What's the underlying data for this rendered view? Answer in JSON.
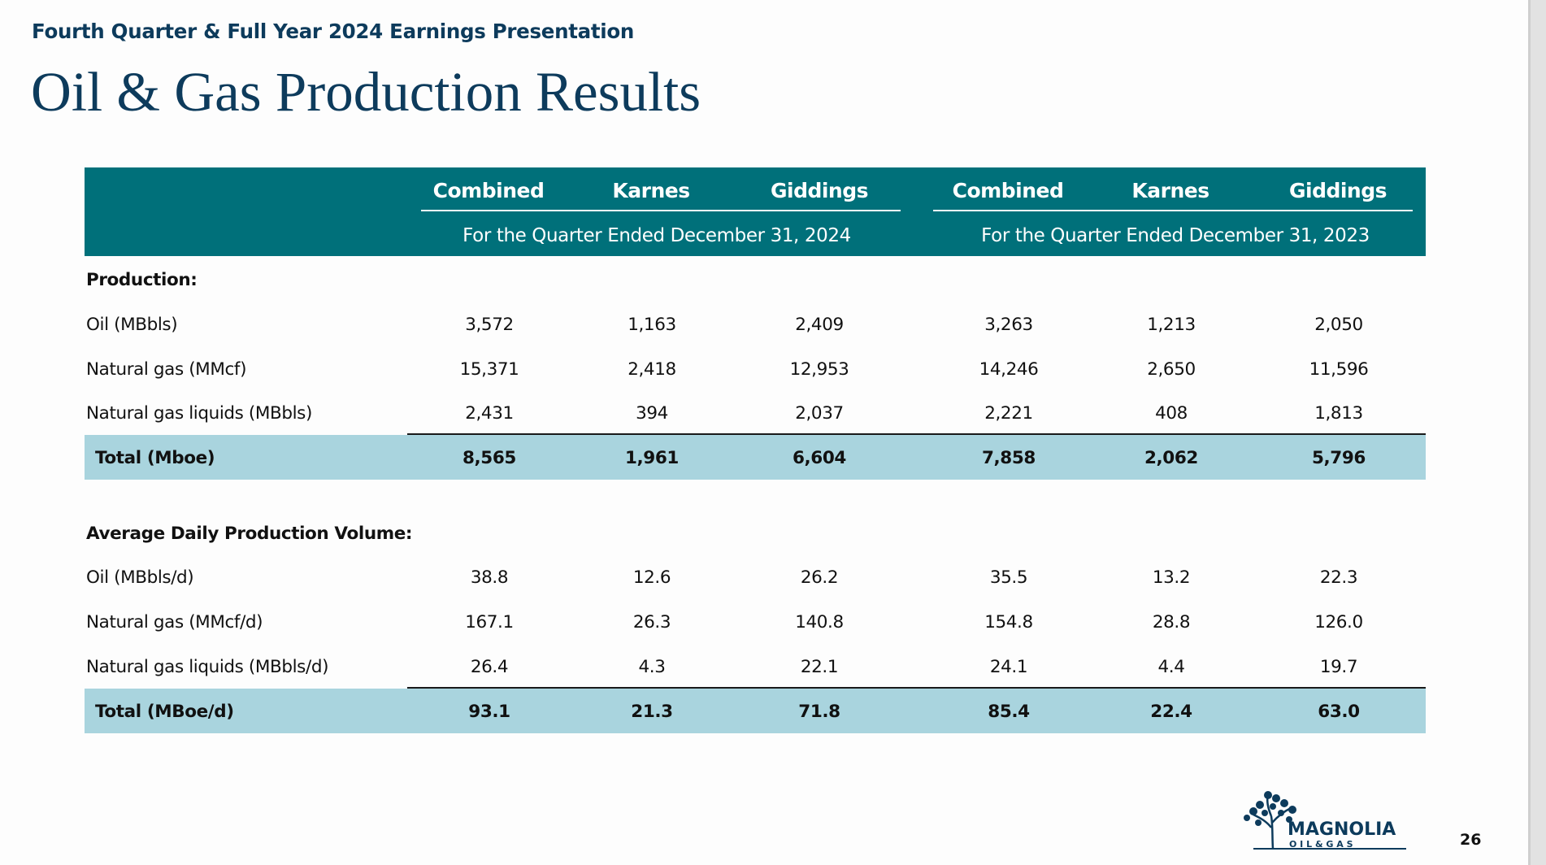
{
  "header": {
    "subtitle": "Fourth Quarter & Full Year 2024 Earnings Presentation",
    "title": "Oil & Gas Production Results"
  },
  "table": {
    "columns": [
      "Combined",
      "Karnes",
      "Giddings",
      "Combined",
      "Karnes",
      "Giddings"
    ],
    "periods": [
      "For the Quarter Ended December 31, 2024",
      "For the Quarter Ended December 31, 2023"
    ],
    "sections": [
      {
        "heading": "Production:",
        "rows": [
          {
            "label": "Oil (MBbls)",
            "values": [
              "3,572",
              "1,163",
              "2,409",
              "3,263",
              "1,213",
              "2,050"
            ]
          },
          {
            "label": "Natural gas (MMcf)",
            "values": [
              "15,371",
              "2,418",
              "12,953",
              "14,246",
              "2,650",
              "11,596"
            ]
          },
          {
            "label": "Natural gas liquids (MBbls)",
            "values": [
              "2,431",
              "394",
              "2,037",
              "2,221",
              "408",
              "1,813"
            ]
          }
        ],
        "total": {
          "label": "Total (Mboe)",
          "values": [
            "8,565",
            "1,961",
            "6,604",
            "7,858",
            "2,062",
            "5,796"
          ]
        }
      },
      {
        "heading": "Average Daily Production Volume:",
        "rows": [
          {
            "label": "Oil (MBbls/d)",
            "values": [
              "38.8",
              "12.6",
              "26.2",
              "35.5",
              "13.2",
              "22.3"
            ]
          },
          {
            "label": "Natural gas (MMcf/d)",
            "values": [
              "167.1",
              "26.3",
              "140.8",
              "154.8",
              "28.8",
              "126.0"
            ]
          },
          {
            "label": "Natural gas liquids (MBbls/d)",
            "values": [
              "26.4",
              "4.3",
              "22.1",
              "24.1",
              "4.4",
              "19.7"
            ]
          }
        ],
        "total": {
          "label": "Total (MBoe/d)",
          "values": [
            "93.1",
            "21.3",
            "71.8",
            "85.4",
            "22.4",
            "63.0"
          ]
        }
      }
    ]
  },
  "footer": {
    "logo_main": "MAGNOLIA",
    "logo_sub": "O I L  &  G A S",
    "page_number": "26"
  },
  "colors": {
    "header_bg": "#00707a",
    "total_row_bg": "#a9d4de",
    "title_color": "#0d3b5c"
  }
}
